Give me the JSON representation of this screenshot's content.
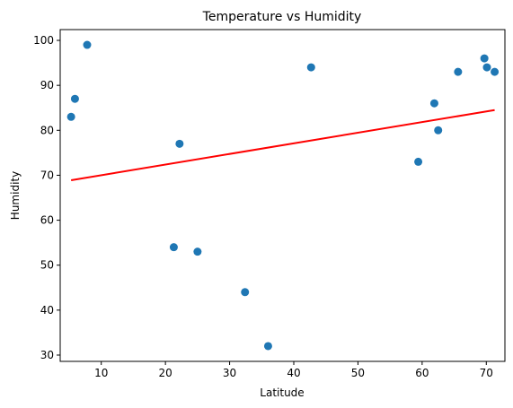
{
  "chart_data": {
    "type": "scatter",
    "title": "Temperature vs Humidity",
    "xlabel": "Latitude",
    "ylabel": "Humidity",
    "xlim": [
      3.6,
      72.9
    ],
    "ylim": [
      28.6,
      102.4
    ],
    "xticks": [
      10,
      20,
      30,
      40,
      50,
      60,
      70
    ],
    "yticks": [
      30,
      40,
      50,
      60,
      70,
      80,
      90,
      100
    ],
    "grid": false,
    "points": [
      {
        "x": 5.3,
        "y": 83
      },
      {
        "x": 5.9,
        "y": 87
      },
      {
        "x": 7.8,
        "y": 99
      },
      {
        "x": 21.3,
        "y": 54
      },
      {
        "x": 22.2,
        "y": 77
      },
      {
        "x": 25.0,
        "y": 53
      },
      {
        "x": 32.4,
        "y": 44
      },
      {
        "x": 36.0,
        "y": 32
      },
      {
        "x": 42.7,
        "y": 94
      },
      {
        "x": 59.4,
        "y": 73
      },
      {
        "x": 61.9,
        "y": 86
      },
      {
        "x": 62.5,
        "y": 80
      },
      {
        "x": 65.6,
        "y": 93
      },
      {
        "x": 69.7,
        "y": 96
      },
      {
        "x": 70.1,
        "y": 94
      },
      {
        "x": 71.3,
        "y": 93
      }
    ],
    "regression": {
      "x1": 5.3,
      "y1": 68.9,
      "x2": 71.3,
      "y2": 84.5
    },
    "colors": {
      "points": "#1f77b4",
      "regression": "#ff0000"
    }
  }
}
